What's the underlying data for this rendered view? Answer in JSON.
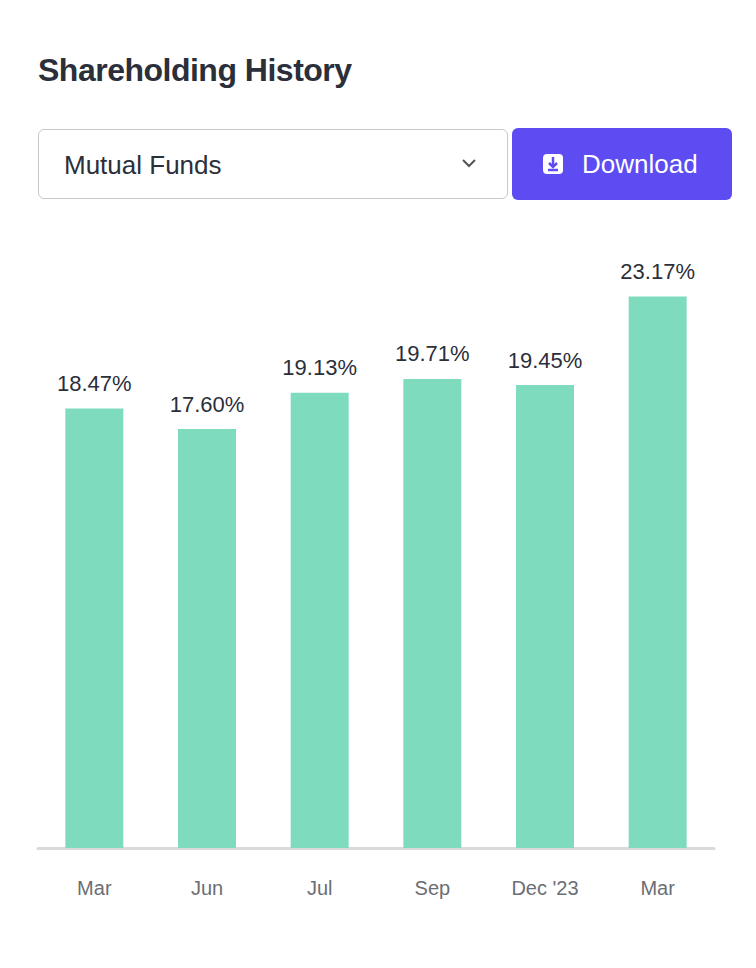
{
  "controls": {
    "dropdown": "Mutual Funds",
    "button": "Download"
  },
  "chart_data": {
    "type": "bar",
    "title": "Shareholding History",
    "categories": [
      "Mar",
      "Jun",
      "Jul",
      "Sep",
      "Dec '23",
      "Mar"
    ],
    "values": [
      18.47,
      17.6,
      19.13,
      19.71,
      19.45,
      23.17
    ],
    "value_labels": [
      "18.47%",
      "17.60%",
      "19.13%",
      "19.71%",
      "19.45%",
      "23.17%"
    ],
    "color": "#7fdbbd",
    "ylim": [
      0,
      25
    ],
    "grid": false,
    "data_labels": true,
    "tick_labels": "x"
  }
}
